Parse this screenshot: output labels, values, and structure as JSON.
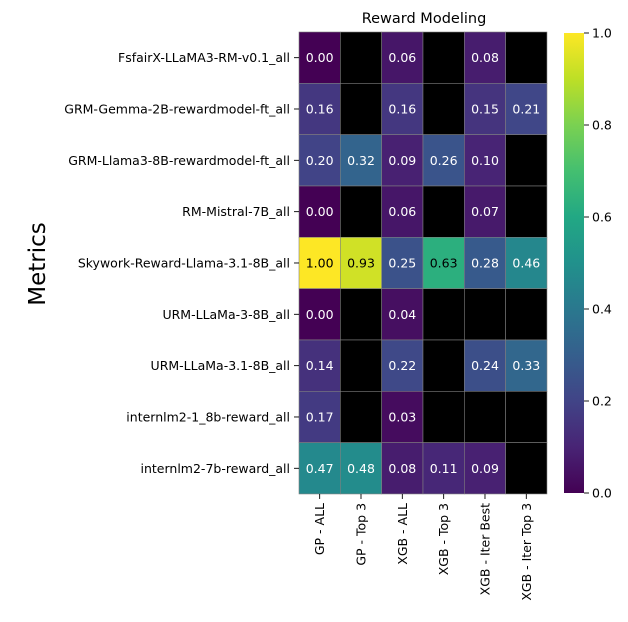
{
  "chart_data": {
    "type": "heatmap",
    "title": "Reward Modeling",
    "ylabel": "Metrics",
    "xlabel": "",
    "rows": [
      "FsfairX-LLaMA3-RM-v0.1_all",
      "GRM-Gemma-2B-rewardmodel-ft_all",
      "GRM-Llama3-8B-rewardmodel-ft_all",
      "RM-Mistral-7B_all",
      "Skywork-Reward-Llama-3.1-8B_all",
      "URM-LLaMa-3-8B_all",
      "URM-LLaMa-3.1-8B_all",
      "internlm2-1_8b-reward_all",
      "internlm2-7b-reward_all"
    ],
    "columns": [
      "GP - ALL",
      "GP - Top 3",
      "XGB - ALL",
      "XGB - Top 3",
      "XGB - Iter Best",
      "XGB - Iter Top 3"
    ],
    "values": [
      [
        0.0,
        null,
        0.06,
        null,
        0.08,
        null
      ],
      [
        0.16,
        null,
        0.16,
        null,
        0.15,
        0.21
      ],
      [
        0.2,
        0.32,
        0.09,
        0.26,
        0.1,
        null
      ],
      [
        0.0,
        null,
        0.06,
        null,
        0.07,
        null
      ],
      [
        1.0,
        0.93,
        0.25,
        0.63,
        0.28,
        0.46
      ],
      [
        0.0,
        null,
        0.04,
        null,
        null,
        null
      ],
      [
        0.14,
        null,
        0.22,
        null,
        0.24,
        0.33
      ],
      [
        0.17,
        null,
        0.03,
        null,
        null,
        null
      ],
      [
        0.47,
        0.48,
        0.08,
        0.11,
        0.09,
        null
      ]
    ],
    "missing_color": "#000000",
    "colormap": "viridis",
    "colorbar": {
      "range": [
        0.0,
        1.0
      ],
      "ticks": [
        0.0,
        0.2,
        0.4,
        0.6,
        0.8,
        1.0
      ],
      "tick_labels": [
        "0.0",
        "0.2",
        "0.4",
        "0.6",
        "0.8",
        "1.0"
      ]
    }
  }
}
